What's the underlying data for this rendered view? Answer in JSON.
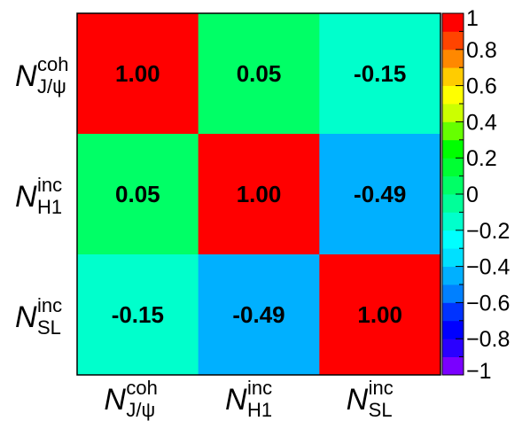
{
  "chart_data": {
    "type": "heatmap",
    "title": "",
    "labels": [
      {
        "main": "N",
        "sup": "coh",
        "sub": "J/ψ"
      },
      {
        "main": "N",
        "sup": "inc",
        "sub": "H1"
      },
      {
        "main": "N",
        "sup": "inc",
        "sub": "SL"
      }
    ],
    "matrix": [
      [
        1.0,
        0.05,
        -0.15
      ],
      [
        0.05,
        1.0,
        -0.49
      ],
      [
        -0.15,
        -0.49,
        1.0
      ]
    ],
    "cell_text": [
      [
        "1.00",
        "0.05",
        "-0.15"
      ],
      [
        "0.05",
        "1.00",
        "-0.49"
      ],
      [
        "-0.15",
        "-0.49",
        "1.00"
      ]
    ],
    "zlim": [
      -1,
      1
    ],
    "colorbar": {
      "tick_values": [
        1,
        0.8,
        0.6,
        0.4,
        0.2,
        0,
        -0.2,
        -0.4,
        -0.6,
        -0.8,
        -1
      ],
      "tick_labels": [
        "1",
        "0.8",
        "0.6",
        "0.4",
        "0.2",
        "0",
        "−0.2",
        "−0.4",
        "−0.6",
        "−0.8",
        "−1"
      ],
      "bins": 20,
      "palette": [
        "#7a00ff",
        "#2a00ff",
        "#0000ff",
        "#0033ff",
        "#0080ff",
        "#00b0ff",
        "#00e0ff",
        "#00ffff",
        "#00ffcc",
        "#00ff99",
        "#00ff66",
        "#00ff33",
        "#00ff00",
        "#66ff00",
        "#ccff00",
        "#ffff00",
        "#ffcc00",
        "#ff8800",
        "#ff4400",
        "#ff0000"
      ]
    }
  }
}
